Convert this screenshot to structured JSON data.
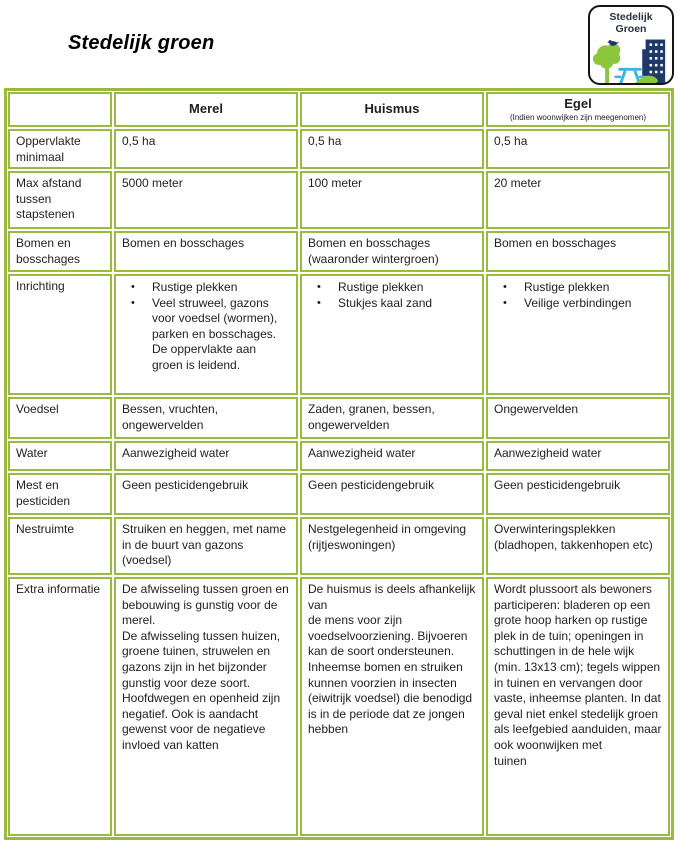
{
  "page": {
    "title": "Stedelijk groen"
  },
  "logo": {
    "title_line1": "Stedelijk",
    "title_line2": "Groen"
  },
  "colors": {
    "table_border": "#9ABB42",
    "logo_navy": "#1E3968",
    "logo_green": "#8CC63C",
    "logo_blue": "#3EB3E6"
  },
  "table": {
    "header": {
      "col1": "",
      "col2": "Merel",
      "col3": "Huismus",
      "col4": "Egel",
      "col4_subtitle": "(Indien woonwijken zijn meegenomen)"
    },
    "rows": [
      {
        "label": "Oppervlakte minimaal",
        "cells": [
          {
            "text": "0,5 ha"
          },
          {
            "text": "0,5 ha"
          },
          {
            "text": "0,5 ha"
          }
        ]
      },
      {
        "label": "Max afstand tussen stapstenen",
        "cells": [
          {
            "text": "5000 meter"
          },
          {
            "text": "100 meter"
          },
          {
            "text": "20 meter"
          }
        ]
      },
      {
        "label": "Bomen en bosschages",
        "cells": [
          {
            "text": "Bomen en bosschages"
          },
          {
            "text": "Bomen en bosschages (waaronder wintergroen)"
          },
          {
            "text": "Bomen en bosschages"
          }
        ]
      },
      {
        "label": "Inrichting",
        "cells": [
          {
            "bullets": [
              "Rustige plekken",
              "Veel struweel, gazons voor voedsel (wormen), parken en bosschages. De oppervlakte aan groen is leidend."
            ]
          },
          {
            "bullets": [
              "Rustige plekken",
              "Stukjes kaal zand"
            ]
          },
          {
            "bullets": [
              "Rustige plekken",
              "Veilige verbindingen"
            ]
          }
        ]
      },
      {
        "label": "Voedsel",
        "cells": [
          {
            "text": "Bessen, vruchten, ongewervelden"
          },
          {
            "text": "Zaden, granen, bessen, ongewervelden"
          },
          {
            "text": "Ongewervelden"
          }
        ]
      },
      {
        "label": "Water",
        "cells": [
          {
            "text": "Aanwezigheid water"
          },
          {
            "text": "Aanwezigheid water"
          },
          {
            "text": "Aanwezigheid water"
          }
        ]
      },
      {
        "label": "Mest en pesticiden",
        "cells": [
          {
            "text": "Geen pesticidengebruik"
          },
          {
            "text": "Geen pesticidengebruik"
          },
          {
            "text": "Geen pesticidengebruik"
          }
        ]
      },
      {
        "label": "Nestruimte",
        "cells": [
          {
            "text": "Struiken en heggen, met name in de buurt van gazons (voedsel)"
          },
          {
            "text": "Nestgelegenheid in omgeving (rijtjeswoningen)"
          },
          {
            "text": "Overwinteringsplekken (bladhopen, takkenhopen etc)"
          }
        ]
      },
      {
        "label": "Extra informatie",
        "cells": [
          {
            "text": "De afwisseling tussen groen en bebouwing is gunstig voor de merel.\nDe afwisseling tussen huizen, groene tuinen, struwelen en gazons zijn in het bijzonder gunstig voor deze soort. Hoofdwegen en openheid zijn negatief. Ook is aandacht gewenst voor de negatieve invloed van katten"
          },
          {
            "text": "De huismus is deels afhankelijk van\nde mens voor zijn voedselvoorziening. Bijvoeren kan de soort ondersteunen. Inheemse bomen en struiken kunnen voorzien in insecten (eiwitrijk voedsel) die benodigd is in de periode dat ze jongen hebben"
          },
          {
            "text": "Wordt plussoort als bewoners participeren: bladeren op een grote hoop harken op rustige plek in de tuin; openingen in schuttingen in de hele wijk (min. 13x13 cm); tegels wippen in tuinen en vervangen door vaste, inheemse planten. In dat geval niet enkel stedelijk groen als leefgebied aanduiden, maar ook woonwijken met\ntuinen"
          }
        ]
      }
    ]
  }
}
